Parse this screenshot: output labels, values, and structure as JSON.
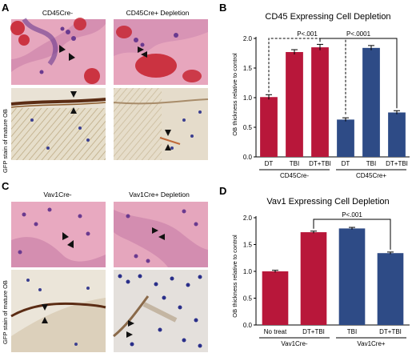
{
  "panels": {
    "A": {
      "letter": "A",
      "col_labels": [
        "CD45Cre-",
        "CD45Cre+ Depletion"
      ],
      "side_label": "GFP stain of mature OB"
    },
    "C": {
      "letter": "C",
      "col_labels": [
        "Vav1Cre-",
        "Vav1Cre+ Depletion"
      ],
      "side_label": "GFP stain of mature OB"
    },
    "B": {
      "letter": "B"
    },
    "D": {
      "letter": "D"
    }
  },
  "colors": {
    "red": "#b8173a",
    "blue": "#2e4b86",
    "he_bg": "#e6a7be",
    "he_stroma": "#c57fa9",
    "he_nuclei": "#6a3a8f",
    "rbc": "#c61f2c",
    "gfp_bg": "#e9e2d5",
    "gfp_stain": "#5b2c14",
    "gfp_cells": "#3b3f90"
  },
  "chart_data": [
    {
      "type": "bar",
      "title": "CD45 Expressing Cell Depletion",
      "ylabel": "OB thickness relative to control",
      "ylim": [
        0,
        2.0
      ],
      "yticks": [
        "0.0",
        "0.5",
        "1.0",
        "1.5",
        "2.0"
      ],
      "categories": [
        "DT",
        "TBI",
        "DT+TBI",
        "DT",
        "TBI",
        "DT+TBI"
      ],
      "values": [
        1.01,
        1.77,
        1.85,
        0.63,
        1.84,
        0.75
      ],
      "errors": [
        0.04,
        0.04,
        0.05,
        0.03,
        0.04,
        0.03
      ],
      "bar_colors": [
        "red",
        "red",
        "red",
        "blue",
        "blue",
        "blue"
      ],
      "groups": [
        {
          "label": "CD45Cre-",
          "start": 0,
          "end": 2
        },
        {
          "label": "CD45Cre+",
          "start": 3,
          "end": 5
        }
      ],
      "annotations": [
        {
          "text": "P<.001",
          "from": 0,
          "to": 3,
          "style": "dashed",
          "level": 2.0
        },
        {
          "text": "P<.0001",
          "from": 2,
          "to": 5,
          "style": "solid",
          "level": 2.0
        }
      ]
    },
    {
      "type": "bar",
      "title": "Vav1 Expressing Cell Depletion",
      "ylabel": "OB thickness relative to control",
      "ylim": [
        0,
        2.0
      ],
      "yticks": [
        "0.0",
        "0.5",
        "1.0",
        "1.5",
        "2.0"
      ],
      "categories": [
        "No treat",
        "DT+TBI",
        "TBI",
        "DT+TBI"
      ],
      "values": [
        1.0,
        1.73,
        1.8,
        1.34
      ],
      "errors": [
        0.02,
        0.02,
        0.02,
        0.02
      ],
      "bar_colors": [
        "red",
        "red",
        "blue",
        "blue"
      ],
      "groups": [
        {
          "label": "Vav1Cre-",
          "start": 0,
          "end": 1
        },
        {
          "label": "Vav1Cre+",
          "start": 2,
          "end": 3
        }
      ],
      "annotations": [
        {
          "text": "P<.001",
          "from": 1,
          "to": 3,
          "style": "solid",
          "level": 1.97
        }
      ]
    }
  ]
}
